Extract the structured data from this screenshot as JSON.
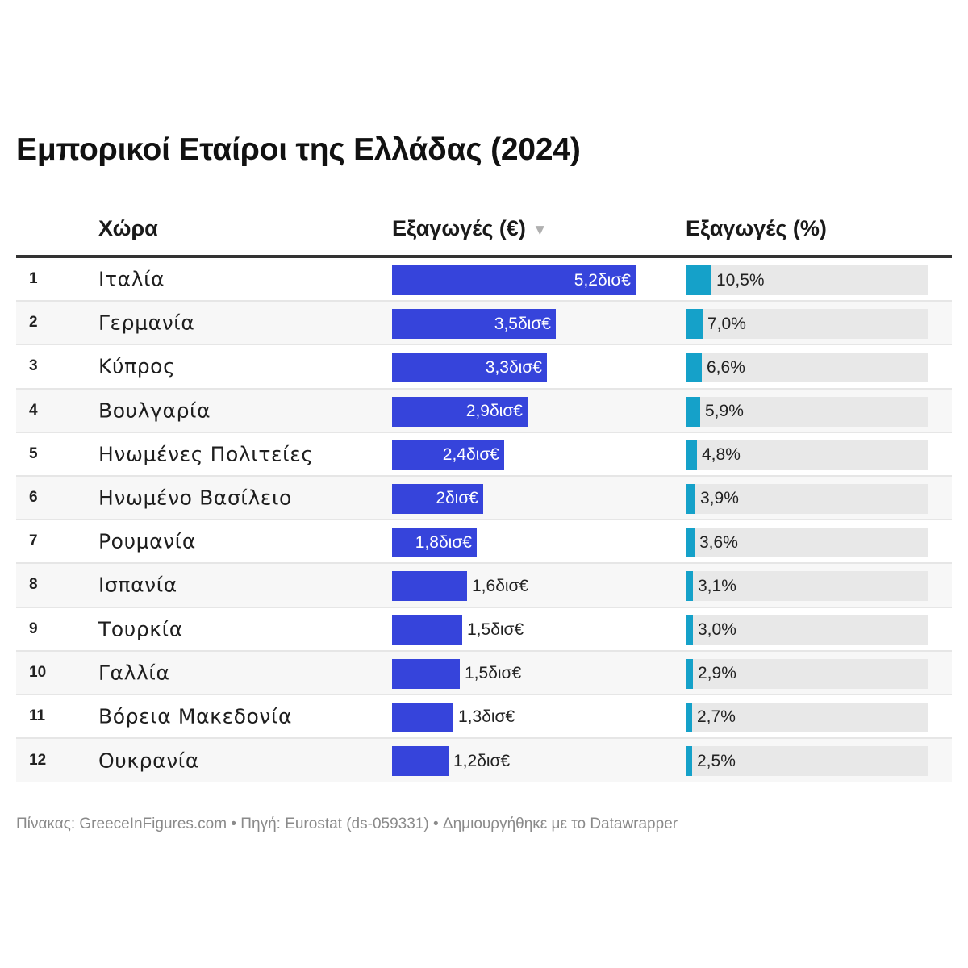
{
  "title": "Εμπορικοί Εταίροι της Ελλάδας (2024)",
  "headers": {
    "country": "Χώρα",
    "exports_eur": "Εξαγωγές (€)",
    "exports_pct": "Εξαγωγές (%)",
    "sort_icon": "▼"
  },
  "footer": "Πίνακας: GreeceInFigures.com • Πηγή: Eurostat (ds-059331) • Δημιουργήθηκε με το Datawrapper",
  "colors": {
    "bar": "#3644db",
    "share": "#15a1c9",
    "share_track": "#e8e8e8"
  },
  "chart_data": {
    "type": "table",
    "title": "Εμπορικοί Εταίροι της Ελλάδας (2024)",
    "columns": [
      "#",
      "Χώρα",
      "Εξαγωγές (€)",
      "Εξαγωγές (%)"
    ],
    "sorted_by": "Εξαγωγές (€)",
    "sort_direction": "descending",
    "exports_max_bn": 5.2,
    "share_scale_max_pct": 100,
    "rows": [
      {
        "rank": "1",
        "country": "Ιταλία",
        "exports_bn": 5.2,
        "exports_label": "5,2δισ€",
        "share_pct": 10.5,
        "share_label": "10,5%"
      },
      {
        "rank": "2",
        "country": "Γερμανία",
        "exports_bn": 3.5,
        "exports_label": "3,5δισ€",
        "share_pct": 7.0,
        "share_label": "7,0%"
      },
      {
        "rank": "3",
        "country": "Κύπρος",
        "exports_bn": 3.3,
        "exports_label": "3,3δισ€",
        "share_pct": 6.6,
        "share_label": "6,6%"
      },
      {
        "rank": "4",
        "country": "Βουλγαρία",
        "exports_bn": 2.9,
        "exports_label": "2,9δισ€",
        "share_pct": 5.9,
        "share_label": "5,9%"
      },
      {
        "rank": "5",
        "country": "Ηνωμένες Πολιτείες",
        "exports_bn": 2.4,
        "exports_label": "2,4δισ€",
        "share_pct": 4.8,
        "share_label": "4,8%"
      },
      {
        "rank": "6",
        "country": "Ηνωμένο Βασίλειο",
        "exports_bn": 1.95,
        "exports_label": "2δισ€",
        "share_pct": 3.9,
        "share_label": "3,9%"
      },
      {
        "rank": "7",
        "country": "Ρουμανία",
        "exports_bn": 1.8,
        "exports_label": "1,8δισ€",
        "share_pct": 3.6,
        "share_label": "3,6%"
      },
      {
        "rank": "8",
        "country": "Ισπανία",
        "exports_bn": 1.6,
        "exports_label": "1,6δισ€",
        "share_pct": 3.1,
        "share_label": "3,1%"
      },
      {
        "rank": "9",
        "country": "Τουρκία",
        "exports_bn": 1.5,
        "exports_label": "1,5δισ€",
        "share_pct": 3.0,
        "share_label": "3,0%"
      },
      {
        "rank": "10",
        "country": "Γαλλία",
        "exports_bn": 1.45,
        "exports_label": "1,5δισ€",
        "share_pct": 2.9,
        "share_label": "2,9%"
      },
      {
        "rank": "11",
        "country": "Βόρεια Μακεδονία",
        "exports_bn": 1.3,
        "exports_label": "1,3δισ€",
        "share_pct": 2.7,
        "share_label": "2,7%"
      },
      {
        "rank": "12",
        "country": "Ουκρανία",
        "exports_bn": 1.2,
        "exports_label": "1,2δισ€",
        "share_pct": 2.5,
        "share_label": "2,5%"
      }
    ]
  }
}
